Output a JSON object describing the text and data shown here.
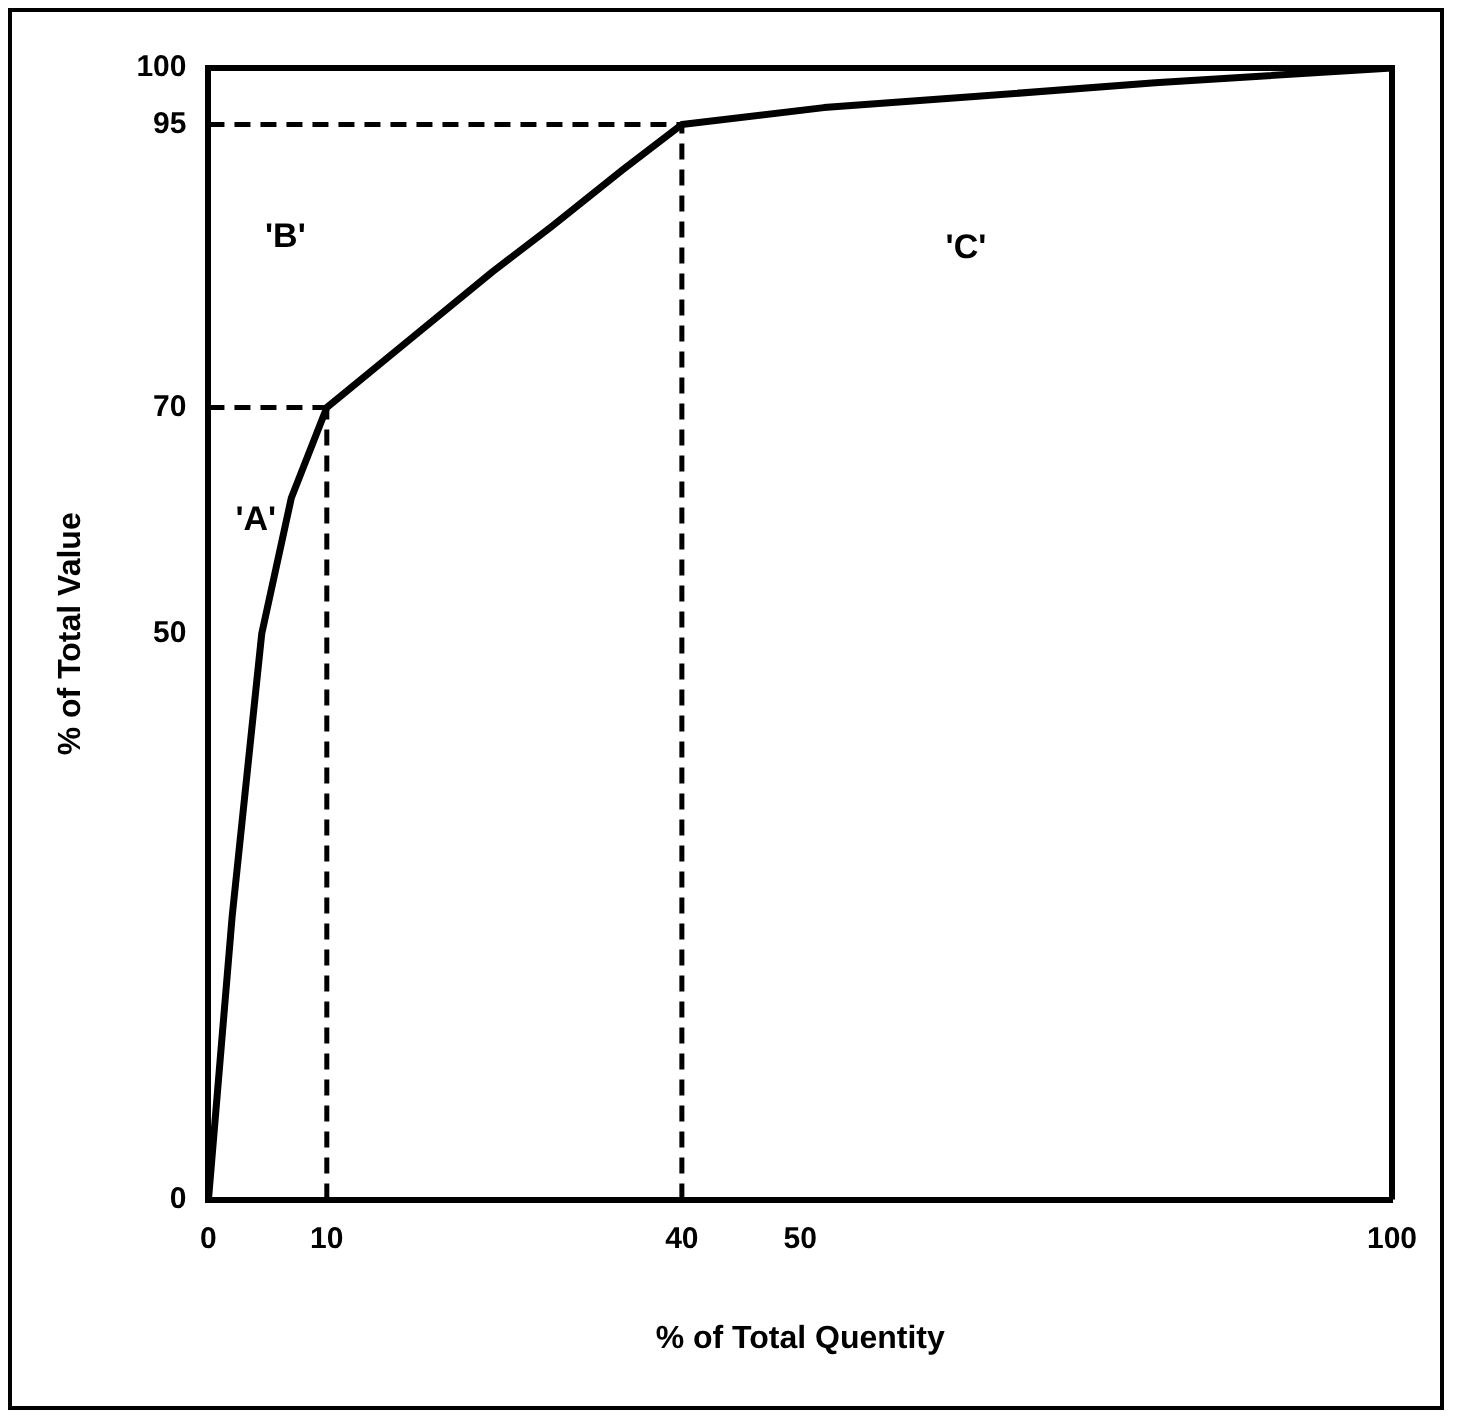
{
  "chart_data": {
    "type": "line",
    "xlabel": "% of Total Quentity",
    "ylabel": "% of Total Value",
    "x": [
      0,
      2,
      4.5,
      7,
      10,
      17,
      24,
      29,
      35,
      40,
      52,
      65,
      80,
      100
    ],
    "series": [
      {
        "color": "#000000",
        "values": [
          0,
          25,
          50,
          62,
          70,
          76,
          82,
          86,
          91,
          95,
          96.5,
          97.5,
          98.7,
          100
        ]
      }
    ],
    "xlim": [
      0,
      100
    ],
    "ylim": [
      0,
      100
    ],
    "xticks": [
      0,
      10,
      40,
      50,
      100
    ],
    "yticks": [
      0,
      50,
      70,
      95,
      100
    ],
    "ref_lines": [
      {
        "axis": "y",
        "value": 70,
        "line_style": "dashed"
      },
      {
        "axis": "y",
        "value": 95,
        "line_style": "dashed"
      },
      {
        "axis": "x",
        "value": 10,
        "line_style": "dashed"
      },
      {
        "axis": "x",
        "value": 40,
        "line_style": "dashed"
      }
    ],
    "annotations": [
      "'A'",
      "'B'",
      "'C'"
    ],
    "legend": false,
    "grid": false,
    "marker": "none",
    "line_style": "solid"
  }
}
